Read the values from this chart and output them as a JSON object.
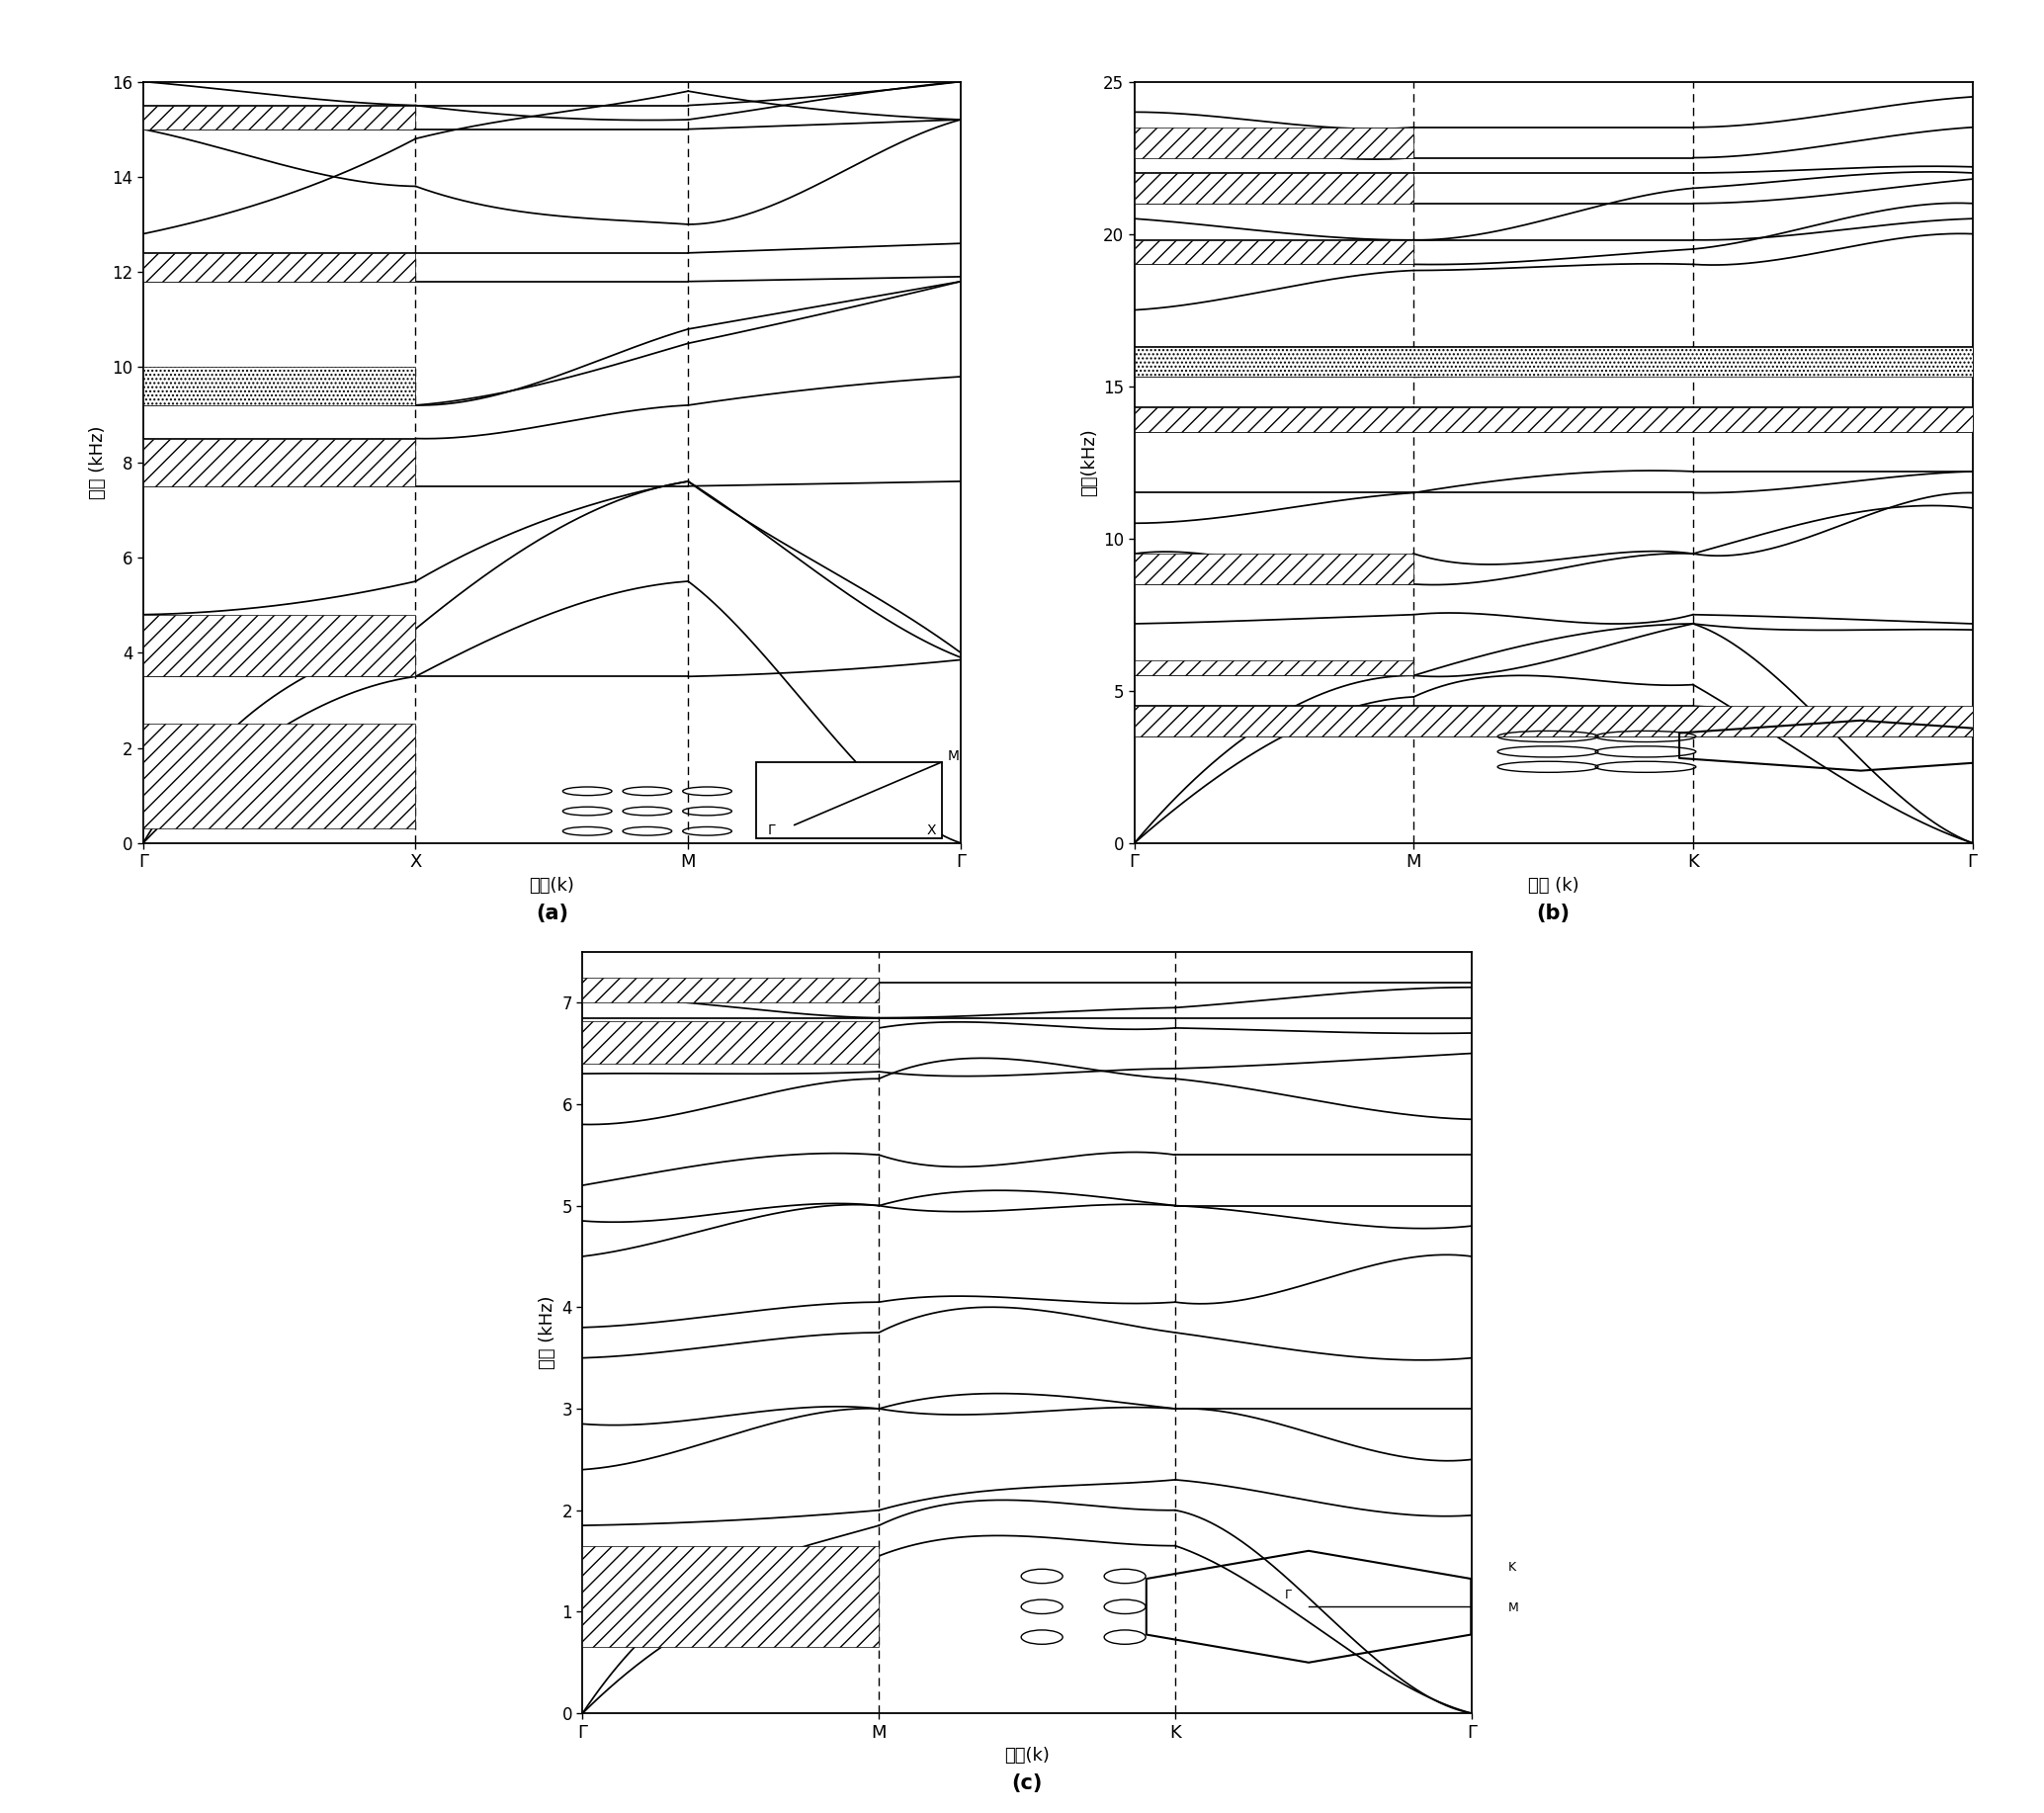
{
  "fig_width": 20.68,
  "fig_height": 18.34,
  "panel_a": {
    "label": "(a)",
    "xlabel": "波矢(k)",
    "ylabel": "频率 (kHz)",
    "xtick_labels": [
      "Γ",
      "X",
      "M",
      "Γ"
    ],
    "ylim": [
      0,
      16
    ],
    "yticks": [
      0,
      2,
      4,
      6,
      8,
      10,
      12,
      14,
      16
    ]
  },
  "panel_b": {
    "label": "(b)",
    "xlabel": "波矢 (k)",
    "ylabel": "频率(kHz)",
    "xtick_labels": [
      "Γ",
      "M",
      "K",
      "Γ"
    ],
    "ylim": [
      0,
      25
    ],
    "yticks": [
      0,
      5,
      10,
      15,
      20,
      25
    ]
  },
  "panel_c": {
    "label": "(c)",
    "xlabel": "波矢(k)",
    "ylabel": "频率 (kHz)",
    "xtick_labels": [
      "Γ",
      "M",
      "K",
      "Γ"
    ],
    "ylim": [
      0,
      7.5
    ],
    "yticks": [
      0,
      1,
      2,
      3,
      4,
      5,
      6,
      7
    ]
  }
}
